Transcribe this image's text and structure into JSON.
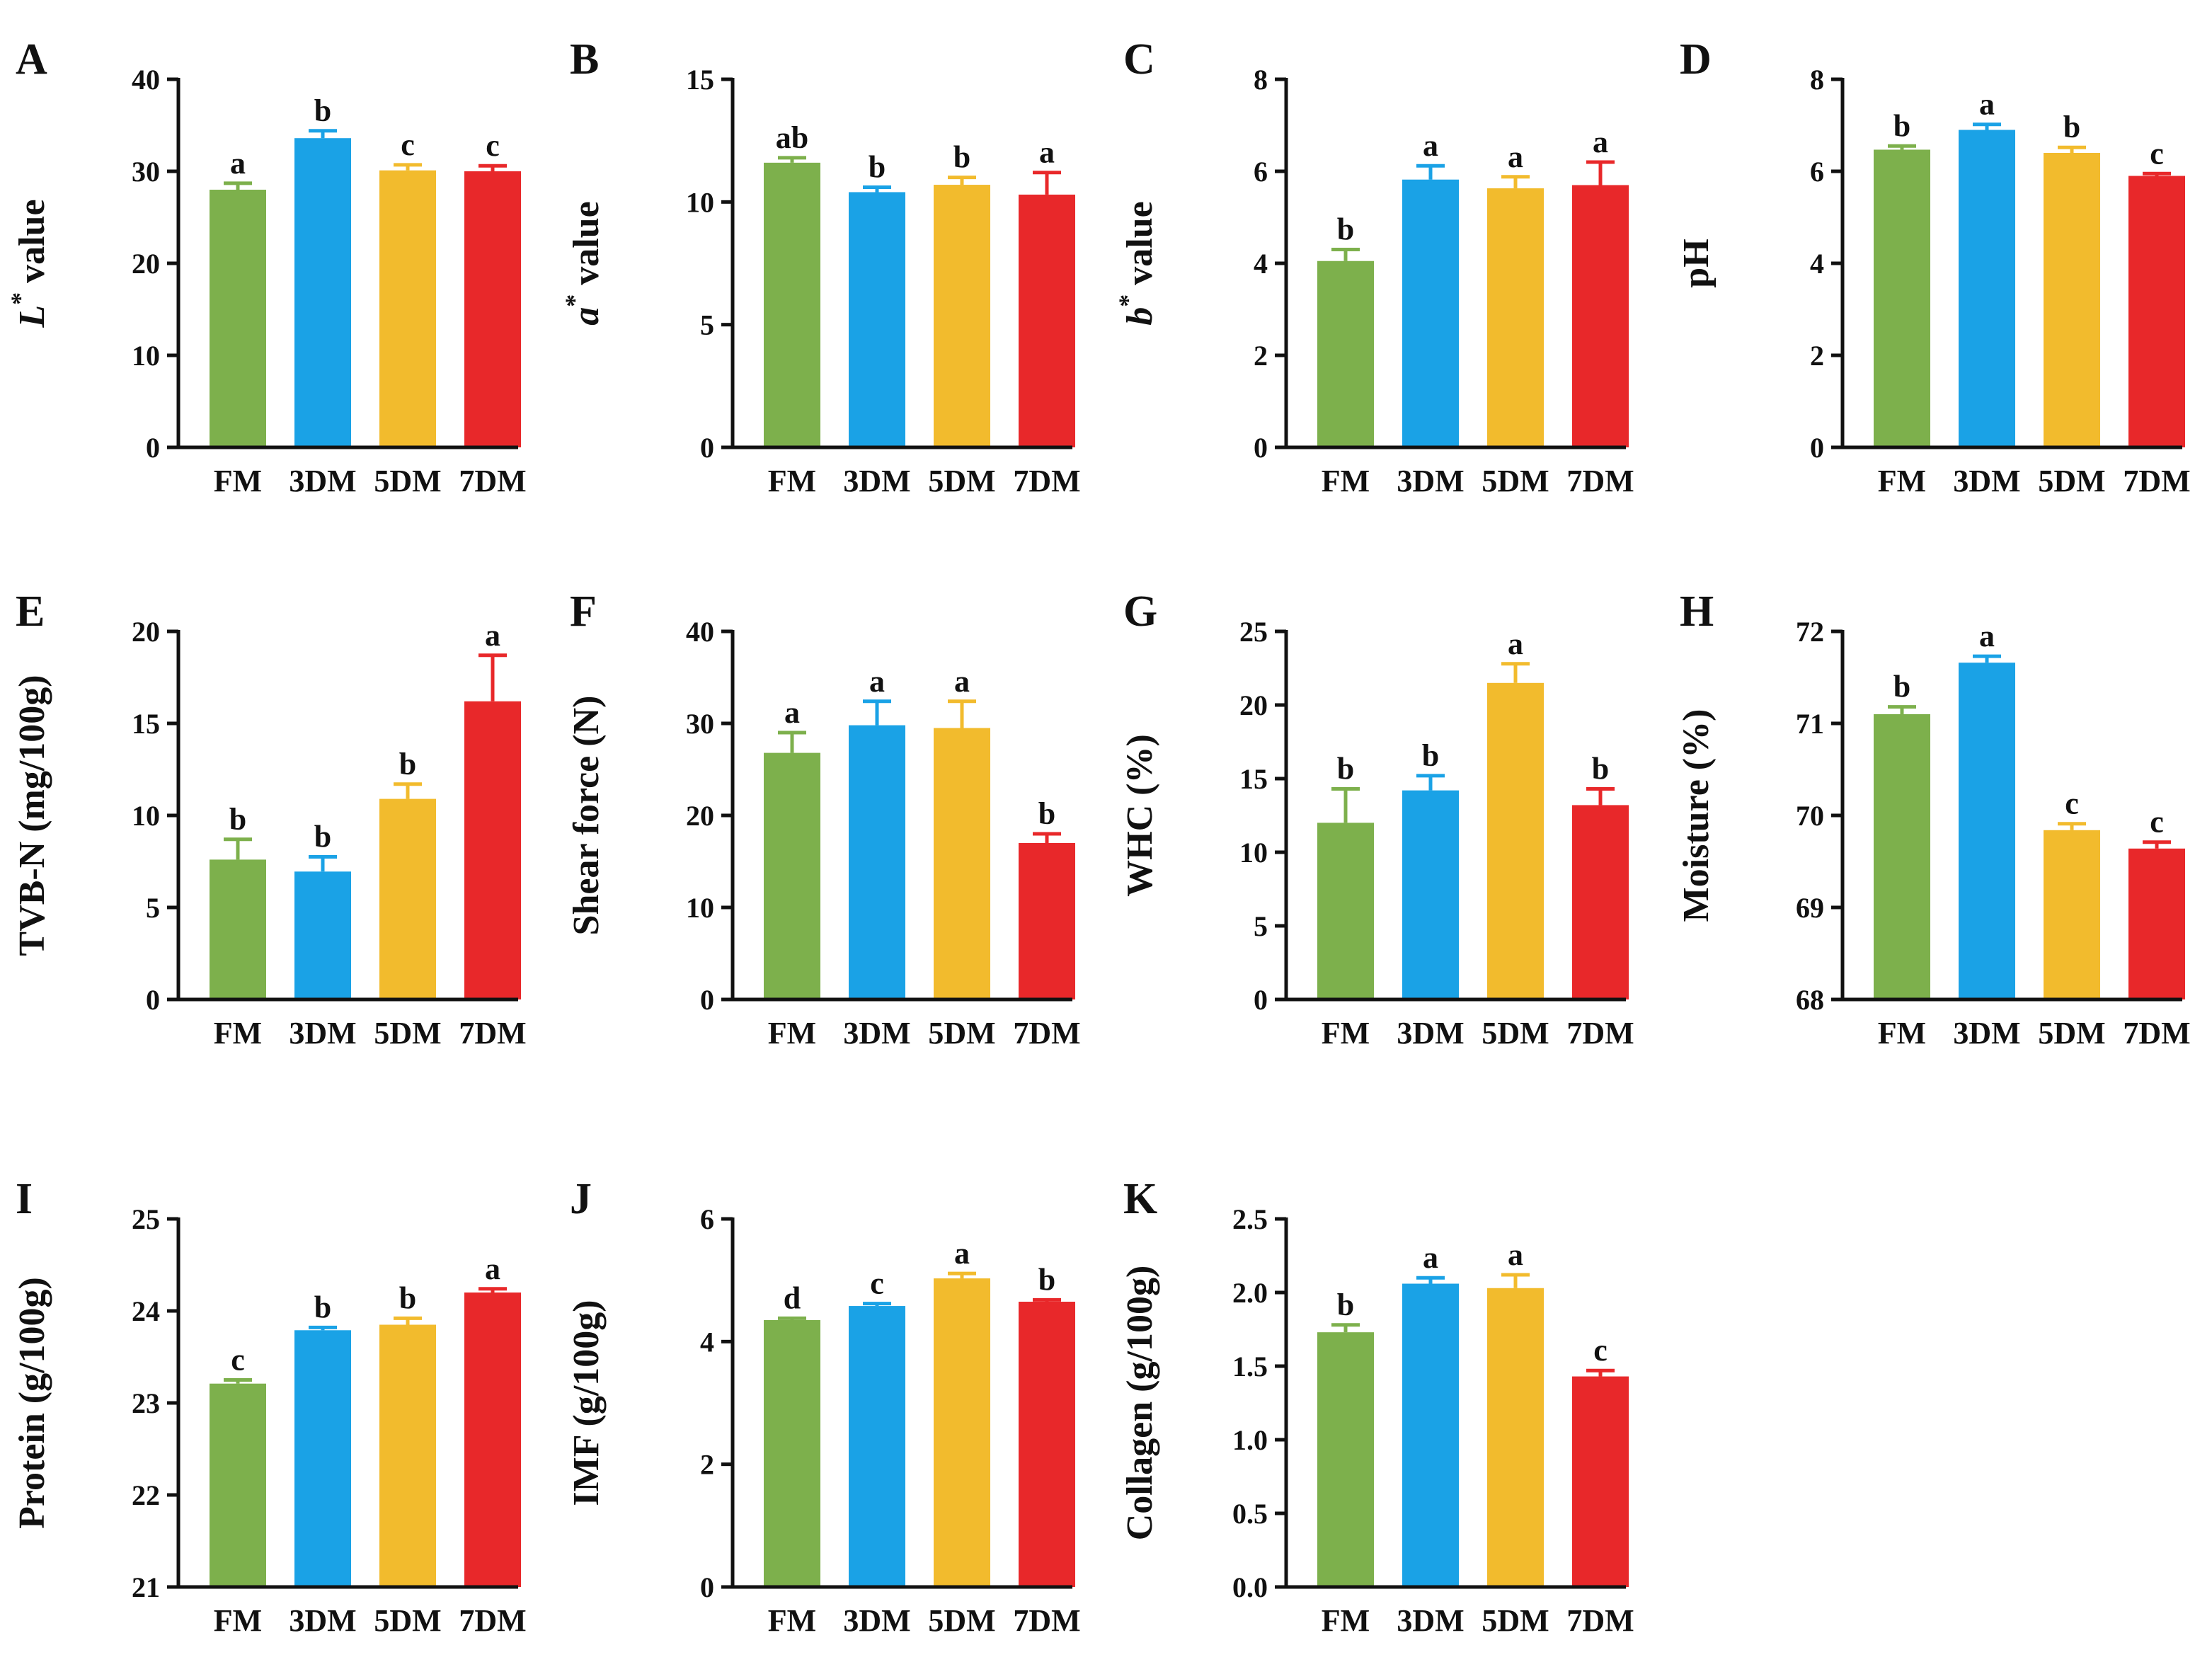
{
  "chart_data": [
    {
      "panel": "A",
      "type": "bar",
      "ylabel": {
        "prefix": "L",
        "sup": "*",
        "suffix": " value",
        "italic_prefix": true
      },
      "categories": [
        "FM",
        "3DM",
        "5DM",
        "7DM"
      ],
      "values": [
        28.0,
        33.6,
        30.1,
        30.0
      ],
      "errors": [
        0.7,
        0.8,
        0.6,
        0.6
      ],
      "letters": [
        "a",
        "b",
        "c",
        "c"
      ],
      "ylim": [
        0,
        40
      ],
      "yticks": [
        0,
        10,
        20,
        30,
        40
      ]
    },
    {
      "panel": "B",
      "type": "bar",
      "ylabel": {
        "prefix": "a",
        "sup": "*",
        "suffix": " value",
        "italic_prefix": true
      },
      "categories": [
        "FM",
        "3DM",
        "5DM",
        "7DM"
      ],
      "values": [
        11.6,
        10.4,
        10.7,
        10.3
      ],
      "errors": [
        0.2,
        0.2,
        0.3,
        0.9
      ],
      "letters": [
        "ab",
        "b",
        "b",
        "a"
      ],
      "ylim": [
        0,
        15
      ],
      "yticks": [
        0,
        5,
        10,
        15
      ]
    },
    {
      "panel": "C",
      "type": "bar",
      "ylabel": {
        "prefix": "b",
        "sup": "*",
        "suffix": " value",
        "italic_prefix": true
      },
      "categories": [
        "FM",
        "3DM",
        "5DM",
        "7DM"
      ],
      "values": [
        4.05,
        5.82,
        5.63,
        5.7
      ],
      "errors": [
        0.25,
        0.3,
        0.25,
        0.5
      ],
      "letters": [
        "b",
        "a",
        "a",
        "a"
      ],
      "ylim": [
        0,
        8
      ],
      "yticks": [
        0,
        2,
        4,
        6,
        8
      ]
    },
    {
      "panel": "D",
      "type": "bar",
      "ylabel": {
        "prefix": "",
        "sup": "",
        "suffix": "pH",
        "italic_prefix": false
      },
      "categories": [
        "FM",
        "3DM",
        "5DM",
        "7DM"
      ],
      "values": [
        6.47,
        6.9,
        6.4,
        5.9
      ],
      "errors": [
        0.08,
        0.12,
        0.12,
        0.05
      ],
      "letters": [
        "b",
        "a",
        "b",
        "c"
      ],
      "ylim": [
        0,
        8
      ],
      "yticks": [
        0,
        2,
        4,
        6,
        8
      ]
    },
    {
      "panel": "E",
      "type": "bar",
      "ylabel": {
        "prefix": "",
        "sup": "",
        "suffix": "TVB-N (mg/100g)",
        "italic_prefix": false
      },
      "categories": [
        "FM",
        "3DM",
        "5DM",
        "7DM"
      ],
      "values": [
        7.6,
        6.95,
        10.9,
        16.2
      ],
      "errors": [
        1.1,
        0.8,
        0.8,
        2.5
      ],
      "letters": [
        "b",
        "b",
        "b",
        "a"
      ],
      "ylim": [
        0,
        20
      ],
      "yticks": [
        0,
        5,
        10,
        15,
        20
      ]
    },
    {
      "panel": "F",
      "type": "bar",
      "ylabel": {
        "prefix": "",
        "sup": "",
        "suffix": "Shear force (N)",
        "italic_prefix": false
      },
      "categories": [
        "FM",
        "3DM",
        "5DM",
        "7DM"
      ],
      "values": [
        26.8,
        29.8,
        29.5,
        17.0
      ],
      "errors": [
        2.2,
        2.6,
        2.9,
        1.0
      ],
      "letters": [
        "a",
        "a",
        "a",
        "b"
      ],
      "ylim": [
        0,
        40
      ],
      "yticks": [
        0,
        10,
        20,
        30,
        40
      ]
    },
    {
      "panel": "G",
      "type": "bar",
      "ylabel": {
        "prefix": "",
        "sup": "",
        "suffix": "WHC (%)",
        "italic_prefix": false
      },
      "categories": [
        "FM",
        "3DM",
        "5DM",
        "7DM"
      ],
      "values": [
        12.0,
        14.2,
        21.5,
        13.2
      ],
      "errors": [
        2.3,
        1.0,
        1.3,
        1.1
      ],
      "letters": [
        "b",
        "b",
        "a",
        "b"
      ],
      "ylim": [
        0,
        25
      ],
      "yticks": [
        0,
        5,
        10,
        15,
        20,
        25
      ]
    },
    {
      "panel": "H",
      "type": "bar",
      "ylabel": {
        "prefix": "",
        "sup": "",
        "suffix": "Moisture (%)",
        "italic_prefix": false
      },
      "categories": [
        "FM",
        "3DM",
        "5DM",
        "7DM"
      ],
      "values": [
        71.1,
        71.66,
        69.84,
        69.64
      ],
      "errors": [
        0.08,
        0.07,
        0.07,
        0.07
      ],
      "letters": [
        "b",
        "a",
        "c",
        "c"
      ],
      "ylim": [
        68,
        72
      ],
      "yticks": [
        68,
        69,
        70,
        71,
        72
      ]
    },
    {
      "panel": "I",
      "type": "bar",
      "ylabel": {
        "prefix": "",
        "sup": "",
        "suffix": "Protein (g/100g)",
        "italic_prefix": false
      },
      "categories": [
        "FM",
        "3DM",
        "5DM",
        "7DM"
      ],
      "values": [
        23.21,
        23.79,
        23.85,
        24.2
      ],
      "errors": [
        0.04,
        0.03,
        0.07,
        0.04
      ],
      "letters": [
        "c",
        "b",
        "b",
        "a"
      ],
      "ylim": [
        21,
        25
      ],
      "yticks": [
        21,
        22,
        23,
        24,
        25
      ]
    },
    {
      "panel": "J",
      "type": "bar",
      "ylabel": {
        "prefix": "",
        "sup": "",
        "suffix": "IMF (g/100g)",
        "italic_prefix": false
      },
      "categories": [
        "FM",
        "3DM",
        "5DM",
        "7DM"
      ],
      "values": [
        4.35,
        4.58,
        5.03,
        4.65
      ],
      "errors": [
        0.03,
        0.04,
        0.08,
        0.03
      ],
      "letters": [
        "d",
        "c",
        "a",
        "b"
      ],
      "ylim": [
        0,
        6
      ],
      "yticks": [
        0,
        2,
        4,
        6
      ]
    },
    {
      "panel": "K",
      "type": "bar",
      "ylabel": {
        "prefix": "",
        "sup": "",
        "suffix": "Collagen (g/100g)",
        "italic_prefix": false
      },
      "categories": [
        "FM",
        "3DM",
        "5DM",
        "7DM"
      ],
      "values": [
        1.73,
        2.06,
        2.03,
        1.43
      ],
      "errors": [
        0.05,
        0.04,
        0.09,
        0.04
      ],
      "letters": [
        "b",
        "a",
        "a",
        "c"
      ],
      "ylim": [
        0,
        2.5
      ],
      "yticks": [
        "0.0",
        "0.5",
        "1.0",
        "1.5",
        "2.0",
        "2.5"
      ]
    }
  ],
  "colors": {
    "series": [
      "#7db04c",
      "#1aa2e6",
      "#f2bb2d",
      "#e8282a"
    ],
    "axis": "#111111"
  }
}
